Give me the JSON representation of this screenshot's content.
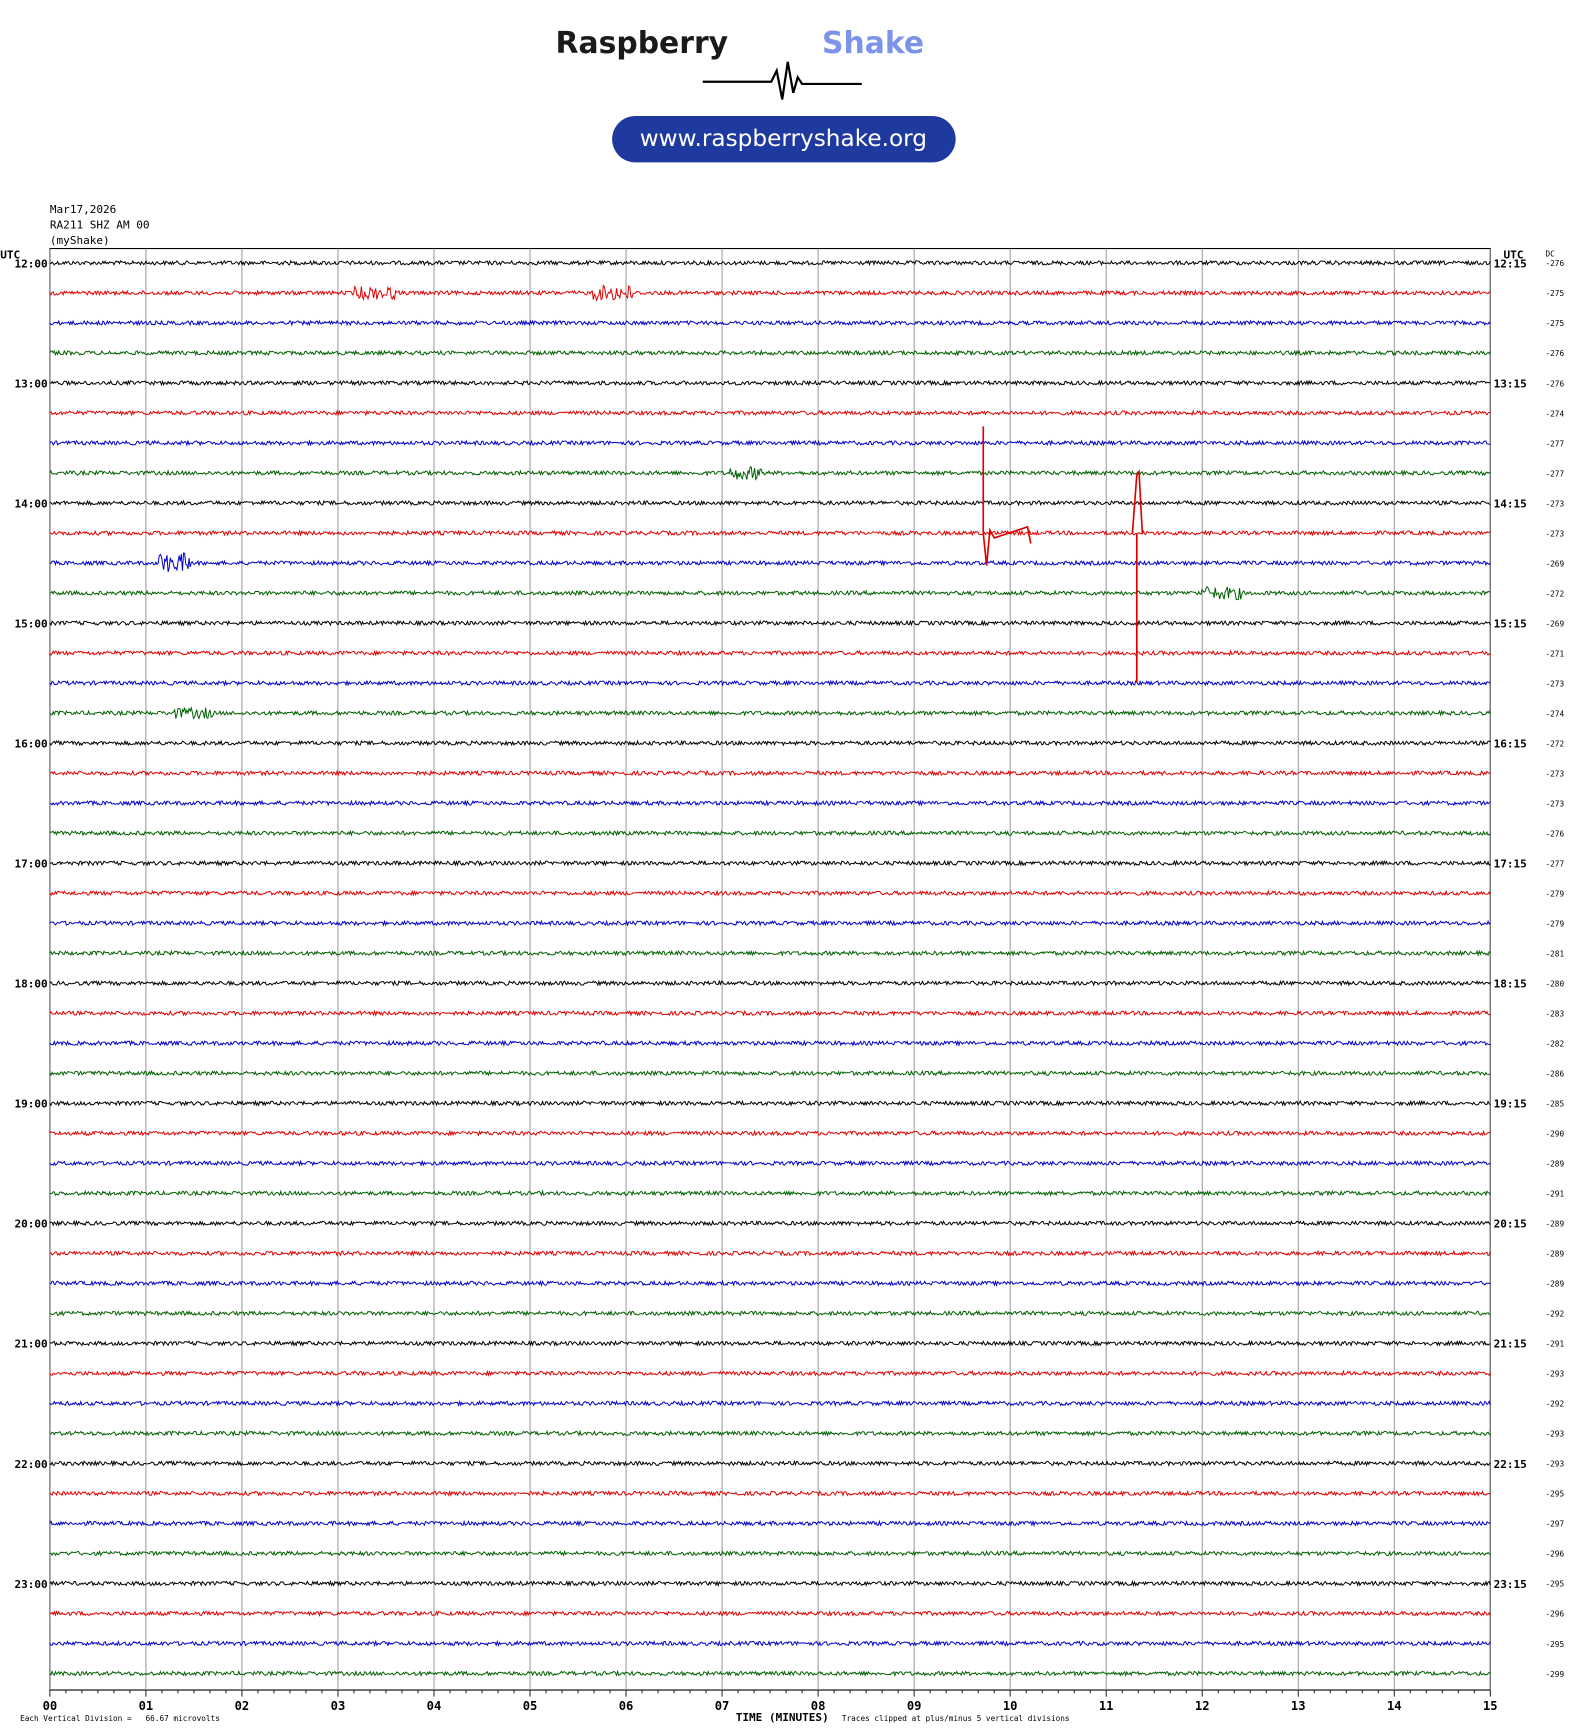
{
  "logo": {
    "brand": "Raspberry",
    "brand2": "Shake",
    "url": "www.raspberryshake.org"
  },
  "header": {
    "date": "Mar17,2026",
    "station": "RA211 SHZ AM 00",
    "network": "(myShake)"
  },
  "chart_data": {
    "type": "helicorder",
    "left_axis_label": "UTC",
    "right_axis_label": "UTC",
    "dc_label": "DC",
    "x_label": "TIME (MINUTES)",
    "scale_note": "Each Vertical Division =   66.67 microvolts",
    "clip_note": "Traces clipped at plus/minus 5 vertical divisions",
    "colors": [
      "#000000",
      "#e00000",
      "#0000cc",
      "#006000"
    ],
    "xlim": [
      0,
      15
    ],
    "xticks": [
      {
        "value": 0,
        "label": "00"
      },
      {
        "value": 1,
        "label": "01"
      },
      {
        "value": 2,
        "label": "02"
      },
      {
        "value": 3,
        "label": "03"
      },
      {
        "value": 4,
        "label": "04"
      },
      {
        "value": 5,
        "label": "05"
      },
      {
        "value": 6,
        "label": "06"
      },
      {
        "value": 7,
        "label": "07"
      },
      {
        "value": 8,
        "label": "08"
      },
      {
        "value": 9,
        "label": "09"
      },
      {
        "value": 10,
        "label": "10"
      },
      {
        "value": 11,
        "label": "11"
      },
      {
        "value": 12,
        "label": "12"
      },
      {
        "value": 13,
        "label": "13"
      },
      {
        "value": 14,
        "label": "14"
      },
      {
        "value": 15,
        "label": "15"
      }
    ],
    "left_labels": [
      "12:00",
      null,
      null,
      null,
      "13:00",
      null,
      null,
      null,
      "14:00",
      null,
      null,
      null,
      "15:00",
      null,
      null,
      null,
      "16:00",
      null,
      null,
      null,
      "17:00",
      null,
      null,
      null,
      "18:00",
      null,
      null,
      null,
      "19:00",
      null,
      null,
      null,
      "20:00",
      null,
      null,
      null,
      "21:00",
      null,
      null,
      null,
      "22:00",
      null,
      null,
      null,
      "23:00",
      null,
      null,
      null
    ],
    "right_labels": [
      "12:15",
      null,
      null,
      null,
      "13:15",
      null,
      null,
      null,
      "14:15",
      null,
      null,
      null,
      "15:15",
      null,
      null,
      null,
      "16:15",
      null,
      null,
      null,
      "17:15",
      null,
      null,
      null,
      "18:15",
      null,
      null,
      null,
      "19:15",
      null,
      null,
      null,
      "20:15",
      null,
      null,
      null,
      "21:15",
      null,
      null,
      null,
      "22:15",
      null,
      null,
      null,
      "23:15",
      null,
      null,
      null
    ],
    "dc": [
      -276,
      -275,
      -275,
      -276,
      -276,
      -274,
      -277,
      -277,
      -273,
      -273,
      -269,
      -272,
      -269,
      -271,
      -273,
      -274,
      -272,
      -273,
      -273,
      -276,
      -277,
      -279,
      -279,
      -281,
      -280,
      -283,
      -282,
      -286,
      -285,
      -290,
      -289,
      -291,
      -289,
      -289,
      -289,
      -292,
      -291,
      -293,
      -292,
      -293,
      -293,
      -295,
      -297,
      -296,
      -295,
      -296,
      -295,
      -299
    ]
  }
}
